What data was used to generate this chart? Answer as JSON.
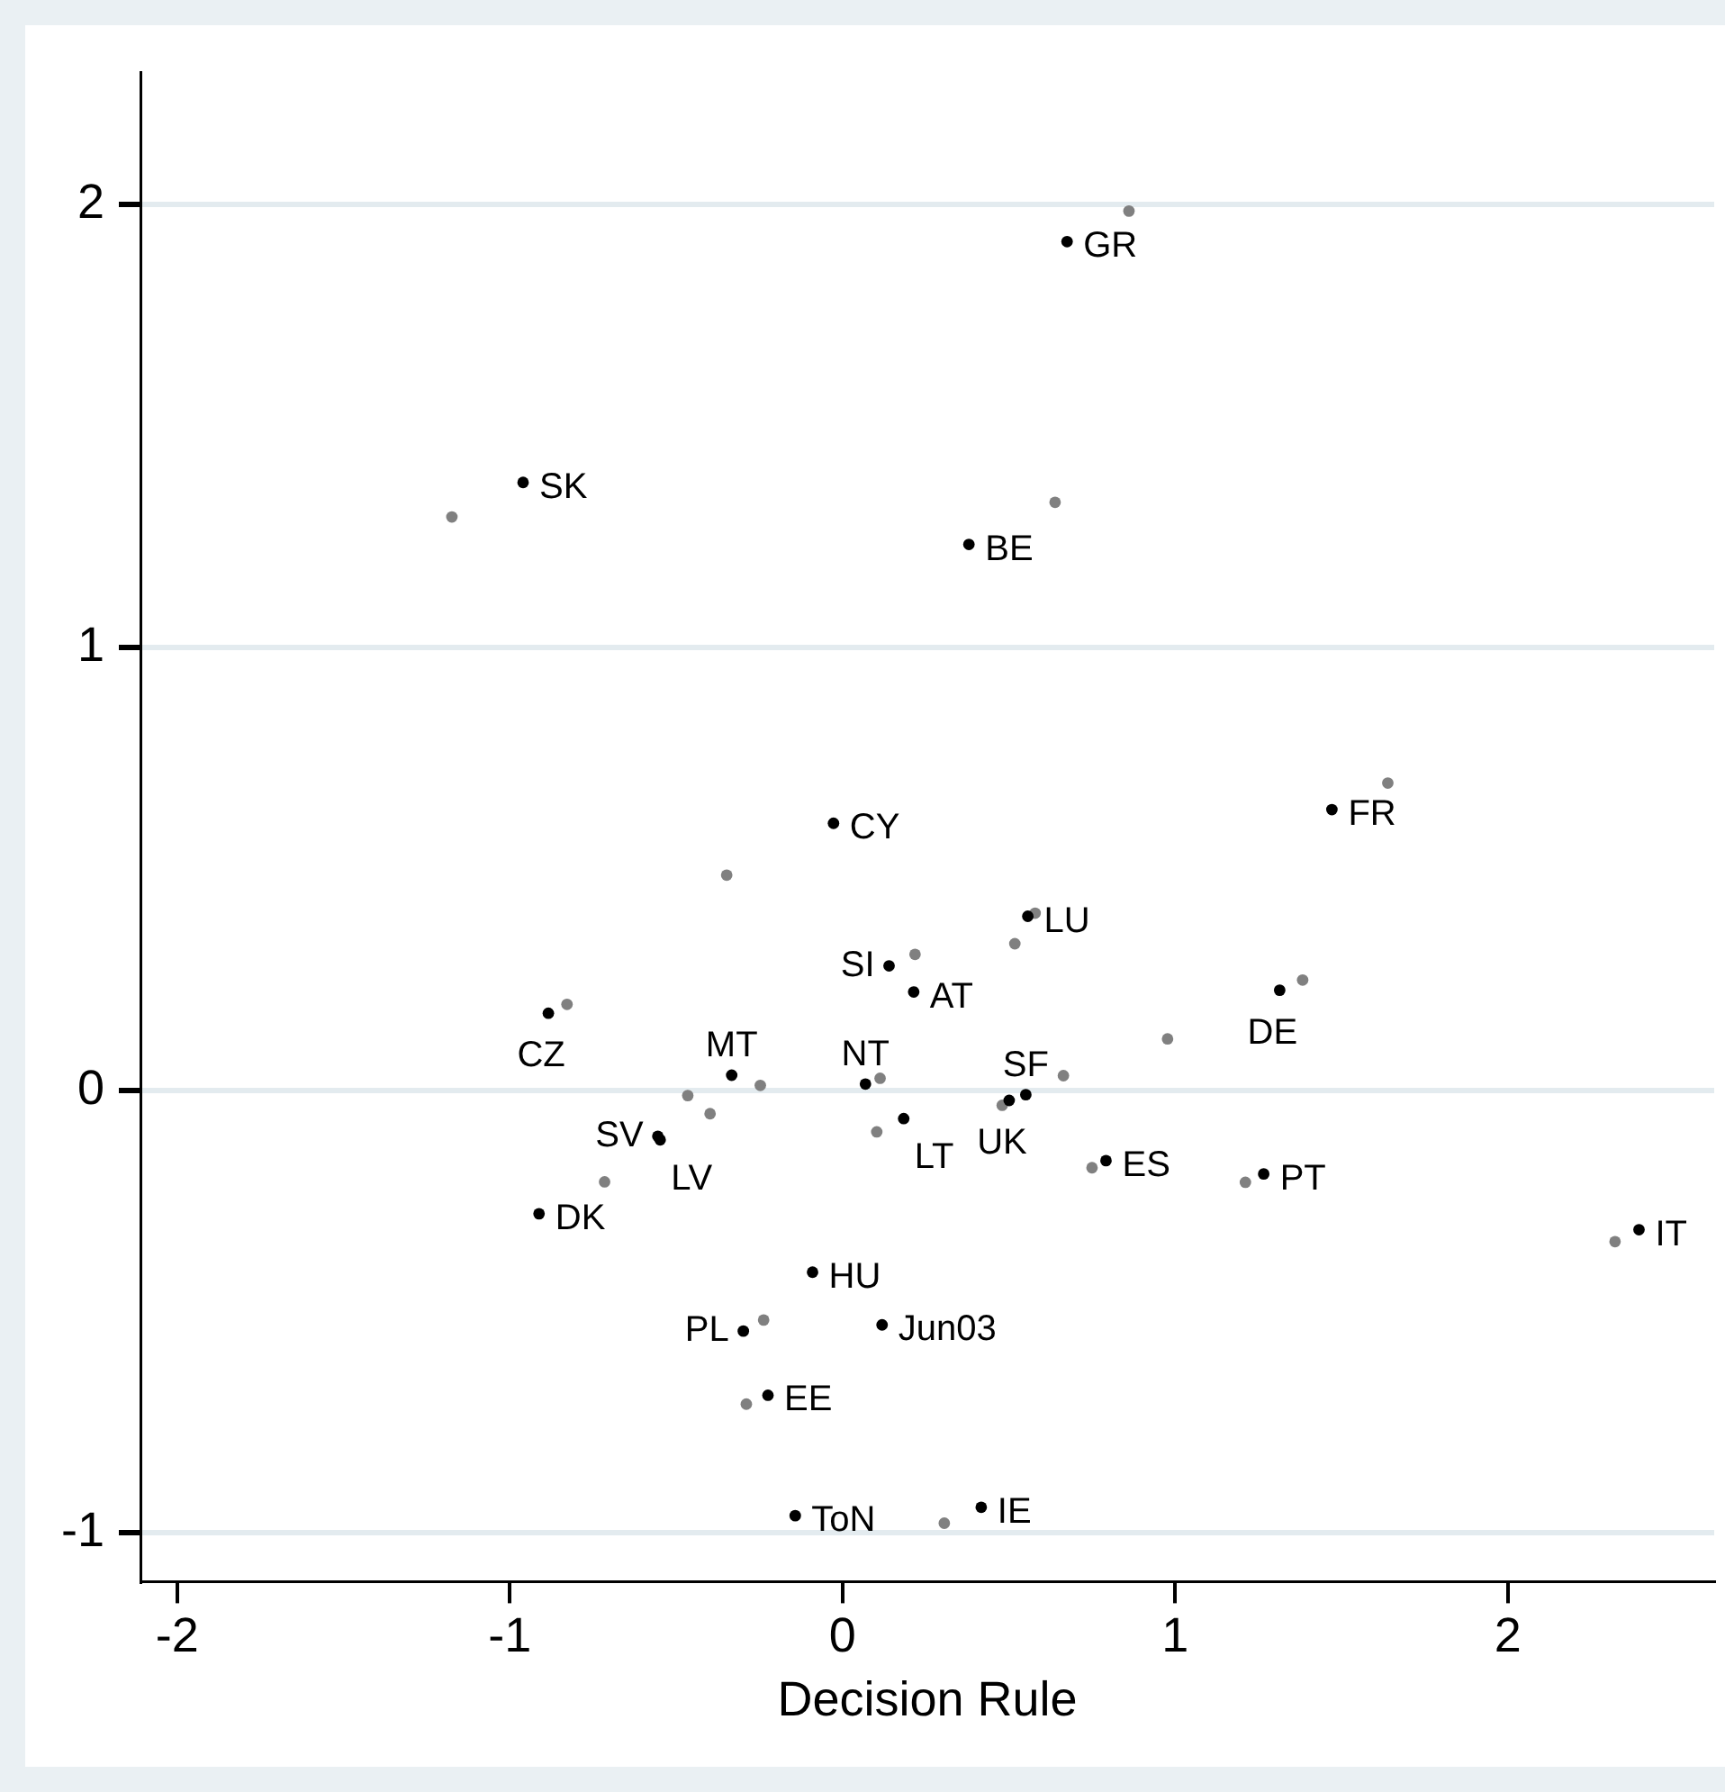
{
  "chart_data": {
    "type": "scatter",
    "xlabel": "Decision Rule",
    "xlim": [
      -2.11,
      2.62
    ],
    "xticks": [
      -2,
      -1,
      0,
      1,
      2
    ],
    "ylim": [
      -1.11,
      2.3
    ],
    "yticks": [
      -1,
      0,
      1,
      2
    ],
    "grid": "y",
    "legend": false,
    "marker": "circle",
    "series": [
      {
        "color": "#000000",
        "x": [
          0.675,
          -0.96,
          0.38,
          -0.027,
          0.557,
          0.14,
          0.214,
          -0.884,
          -0.333,
          0.069,
          0.551,
          0.501,
          0.184,
          -0.555,
          -0.548,
          0.792,
          -0.912,
          -0.09,
          1.471,
          1.314,
          1.266,
          2.394,
          -0.298,
          0.119,
          -0.224,
          -0.142,
          0.417
        ],
        "values": [
          1.917,
          1.373,
          1.233,
          0.603,
          0.393,
          0.281,
          0.222,
          0.174,
          0.034,
          0.014,
          -0.01,
          -0.023,
          -0.064,
          -0.104,
          -0.112,
          -0.159,
          -0.279,
          -0.411,
          0.634,
          0.226,
          -0.189,
          -0.315,
          -0.544,
          -0.53,
          -0.689,
          -0.961,
          -0.942
        ],
        "value_labels": [
          "GR",
          "SK",
          "BE",
          "CY",
          "LU",
          "SI",
          "AT",
          "CZ",
          "MT",
          "NT",
          "SF",
          "UK",
          "LT",
          "SV",
          "LV",
          "ES",
          "DK",
          "HU",
          "FR",
          "DE",
          "PT",
          "IT",
          "PL",
          "Jun03",
          "EE",
          "ToN",
          "IE"
        ]
      },
      {
        "color": "#808080",
        "x": [
          0.861,
          -1.174,
          0.639,
          -0.348,
          0.579,
          0.518,
          0.218,
          -0.828,
          0.977,
          -0.247,
          0.113,
          0.664,
          -0.465,
          -0.398,
          0.48,
          0.103,
          0.75,
          -0.715,
          1.639,
          1.383,
          1.211,
          2.322,
          -0.237,
          -0.289,
          0.306
        ],
        "values": [
          1.986,
          1.295,
          1.328,
          0.486,
          0.4,
          0.331,
          0.307,
          0.194,
          0.116,
          0.011,
          0.027,
          0.033,
          -0.012,
          -0.053,
          -0.034,
          -0.094,
          -0.175,
          -0.207,
          0.694,
          0.249,
          -0.208,
          -0.342,
          -0.519,
          -0.709,
          -0.978
        ]
      }
    ]
  }
}
